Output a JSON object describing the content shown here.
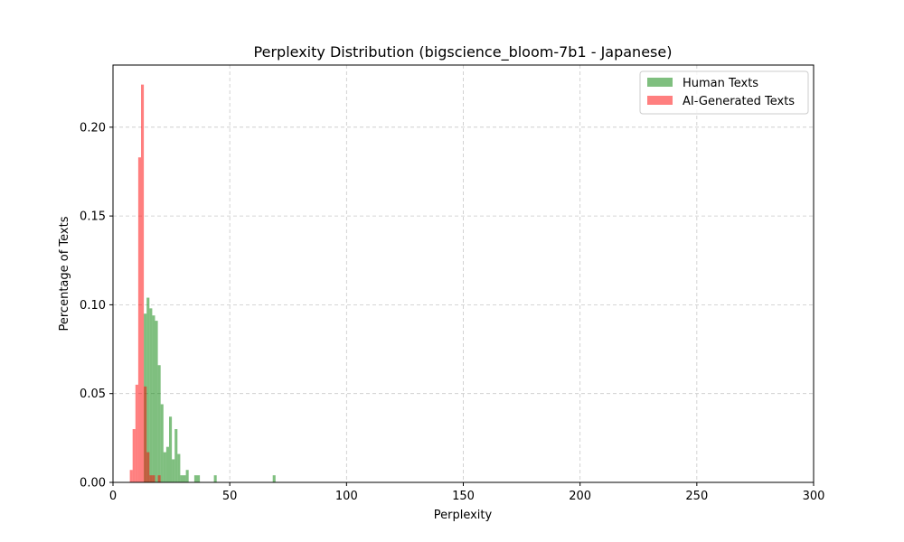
{
  "chart_data": {
    "type": "bar",
    "title": "Perplexity Distribution (bigscience_bloom-7b1 - Japanese)",
    "xlabel": "Perplexity",
    "ylabel": "Percentage of Texts",
    "xlim": [
      0,
      300
    ],
    "ylim": [
      0,
      0.235
    ],
    "xticks": [
      0,
      50,
      100,
      150,
      200,
      250,
      300
    ],
    "yticks": [
      0.0,
      0.05,
      0.1,
      0.15,
      0.2
    ],
    "ytick_labels": [
      "0.00",
      "0.05",
      "0.10",
      "0.15",
      "0.20"
    ],
    "grid": true,
    "legend_position": "top-right",
    "series": [
      {
        "name": "Human Texts",
        "color": "#008000",
        "alpha": 0.5,
        "bin_width": 1.2,
        "bins": [
          [
            13.2,
            0.095
          ],
          [
            14.4,
            0.104
          ],
          [
            15.6,
            0.098
          ],
          [
            16.8,
            0.094
          ],
          [
            18.0,
            0.091
          ],
          [
            19.2,
            0.066
          ],
          [
            20.4,
            0.044
          ],
          [
            21.6,
            0.017
          ],
          [
            22.8,
            0.02
          ],
          [
            24.0,
            0.037
          ],
          [
            25.2,
            0.013
          ],
          [
            26.4,
            0.03
          ],
          [
            27.6,
            0.016
          ],
          [
            28.8,
            0.004
          ],
          [
            30.0,
            0.004
          ],
          [
            31.2,
            0.007
          ],
          [
            34.8,
            0.004
          ],
          [
            36.0,
            0.004
          ],
          [
            43.2,
            0.004
          ],
          [
            68.4,
            0.004
          ]
        ]
      },
      {
        "name": "AI-Generated Texts",
        "color": "#ff0000",
        "alpha": 0.5,
        "bin_width": 1.2,
        "bins": [
          [
            7.2,
            0.007
          ],
          [
            8.4,
            0.03
          ],
          [
            9.6,
            0.055
          ],
          [
            10.8,
            0.183
          ],
          [
            12.0,
            0.224
          ],
          [
            13.2,
            0.054
          ],
          [
            14.4,
            0.017
          ],
          [
            15.6,
            0.004
          ],
          [
            16.8,
            0.004
          ],
          [
            19.2,
            0.004
          ]
        ]
      }
    ]
  }
}
